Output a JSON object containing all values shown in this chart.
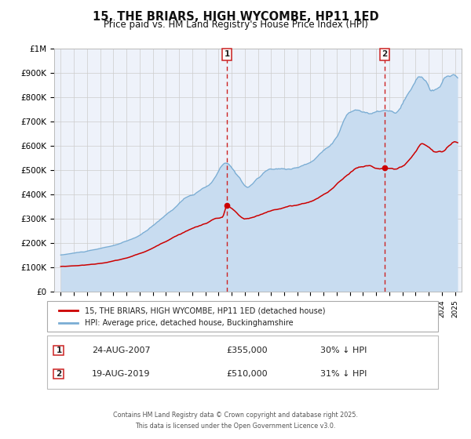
{
  "title": "15, THE BRIARS, HIGH WYCOMBE, HP11 1ED",
  "subtitle": "Price paid vs. HM Land Registry's House Price Index (HPI)",
  "title_fontsize": 10.5,
  "subtitle_fontsize": 8.5,
  "background_color": "#ffffff",
  "plot_bg_color": "#eef2fa",
  "grid_color": "#cccccc",
  "red_line_color": "#cc0000",
  "blue_line_color": "#7aadd4",
  "blue_fill_color": "#c8dcf0",
  "marker1_x": 2007.65,
  "marker1_y": 355000,
  "marker2_x": 2019.65,
  "marker2_y": 510000,
  "vline_color": "#cc2222",
  "ylim": [
    0,
    1000000
  ],
  "xlim_start": 1994.5,
  "xlim_end": 2025.5,
  "yticks": [
    0,
    100000,
    200000,
    300000,
    400000,
    500000,
    600000,
    700000,
    800000,
    900000,
    1000000
  ],
  "ytick_labels": [
    "£0",
    "£100K",
    "£200K",
    "£300K",
    "£400K",
    "£500K",
    "£600K",
    "£700K",
    "£800K",
    "£900K",
    "£1M"
  ],
  "xticks": [
    1995,
    1996,
    1997,
    1998,
    1999,
    2000,
    2001,
    2002,
    2003,
    2004,
    2005,
    2006,
    2007,
    2008,
    2009,
    2010,
    2011,
    2012,
    2013,
    2014,
    2015,
    2016,
    2017,
    2018,
    2019,
    2020,
    2021,
    2022,
    2023,
    2024,
    2025
  ],
  "legend_red_label": "15, THE BRIARS, HIGH WYCOMBE, HP11 1ED (detached house)",
  "legend_blue_label": "HPI: Average price, detached house, Buckinghamshire",
  "annotation1_label": "1",
  "annotation1_date": "24-AUG-2007",
  "annotation1_price": "£355,000",
  "annotation1_hpi": "30% ↓ HPI",
  "annotation2_label": "2",
  "annotation2_date": "19-AUG-2019",
  "annotation2_price": "£510,000",
  "annotation2_hpi": "31% ↓ HPI",
  "footer_line1": "Contains HM Land Registry data © Crown copyright and database right 2025.",
  "footer_line2": "This data is licensed under the Open Government Licence v3.0."
}
